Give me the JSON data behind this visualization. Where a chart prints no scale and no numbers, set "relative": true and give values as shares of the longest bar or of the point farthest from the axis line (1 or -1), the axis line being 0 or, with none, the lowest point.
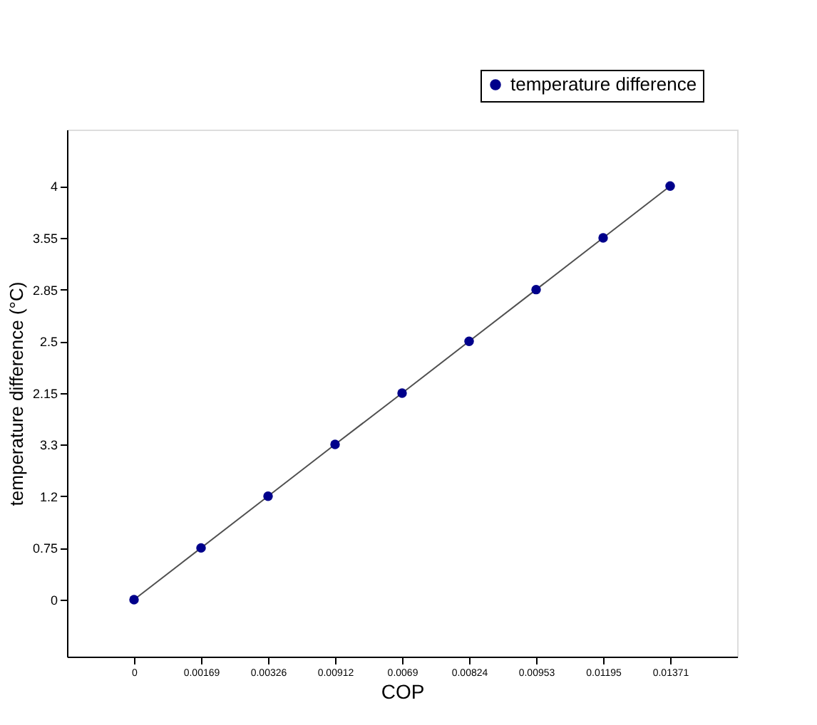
{
  "chart_data": {
    "type": "line",
    "xlabel": "COP",
    "ylabel": "temperature difference (°C)",
    "categories": [
      "0",
      "0.00169",
      "0.00326",
      "0.00912",
      "0.0069",
      "0.00824",
      "0.00953",
      "0.01195",
      "0.01371"
    ],
    "y_categories": [
      "4",
      "3.55",
      "2.85",
      "2.5",
      "2.15",
      "3.3",
      "1.2",
      "0.75",
      "0"
    ],
    "relative": true,
    "series": [
      {
        "name": "temperature difference",
        "color": "#00008b",
        "values": [
          0.121,
          0.231,
          0.341,
          0.451,
          0.56,
          0.67,
          0.78,
          0.89,
          1
        ]
      }
    ],
    "marker": "circle",
    "line_style": "solid",
    "grid": false,
    "legend": "top right"
  }
}
